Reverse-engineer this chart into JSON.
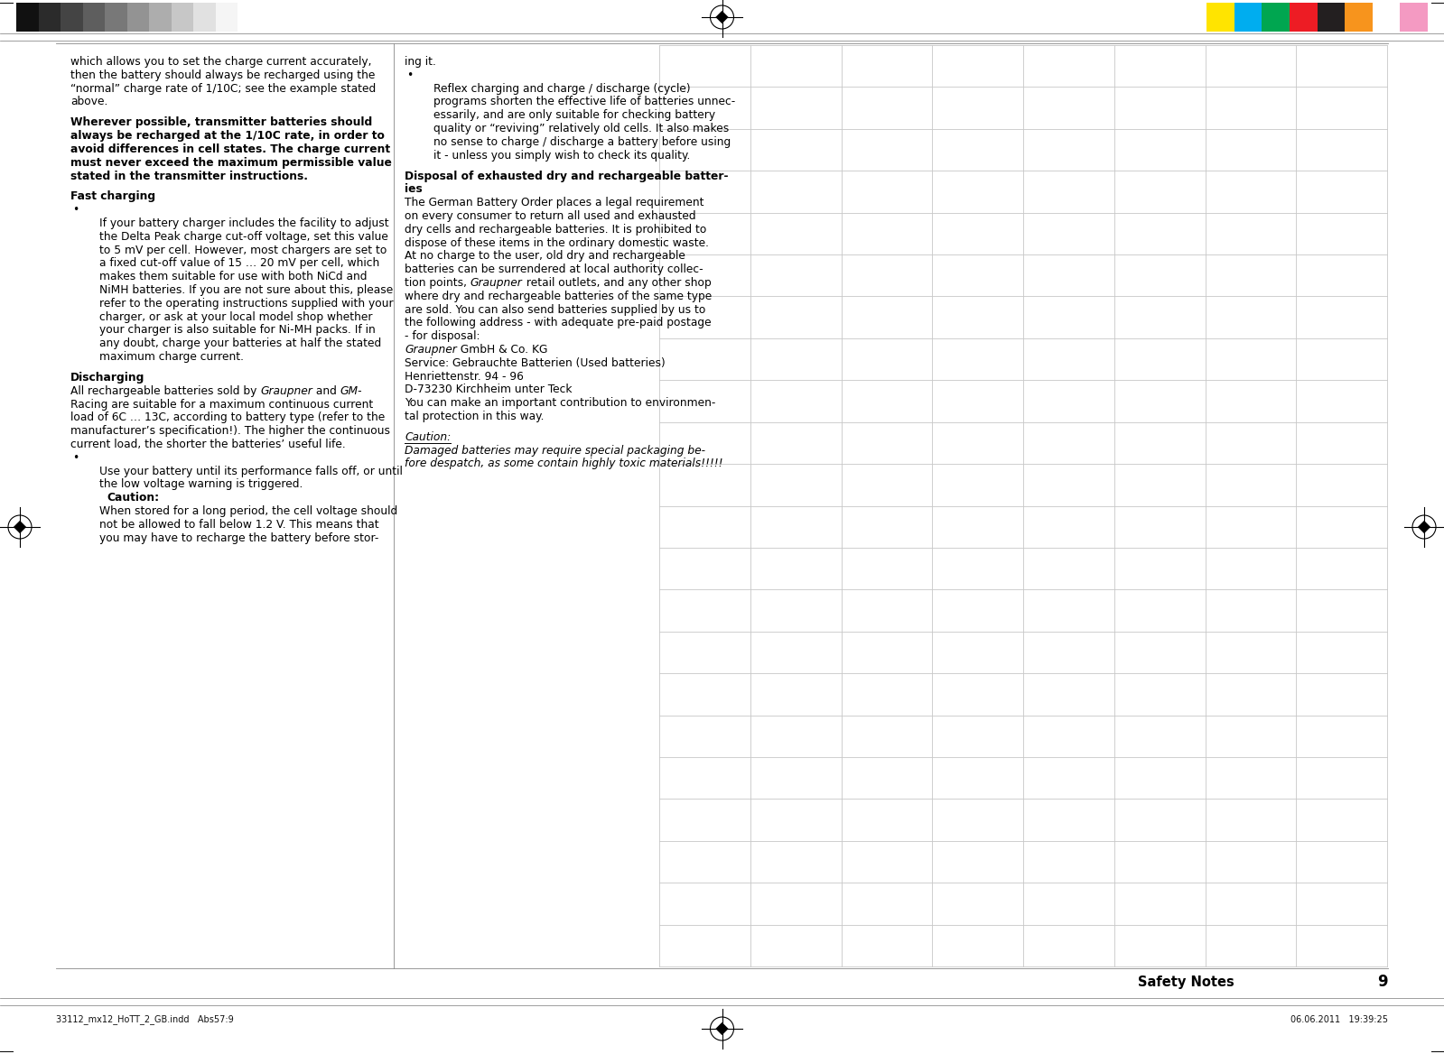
{
  "page_bg": "#ffffff",
  "header_bar_colors_gray": [
    "#111111",
    "#2b2b2b",
    "#444444",
    "#5e5e5e",
    "#787878",
    "#939393",
    "#adadad",
    "#c7c7c7",
    "#e1e1e1",
    "#f5f5f5"
  ],
  "header_bar_colors_color": [
    "#ffe400",
    "#00adef",
    "#00a650",
    "#ed1c24",
    "#231f20",
    "#f7941d",
    "#ffffff",
    "#f49ac2"
  ],
  "footer_text_left": "33112_mx12_HoTT_2_GB.indd   Abs57:9",
  "footer_text_right": "06.06.2011   19:39:25",
  "page_number": "9",
  "section_title": "Safety Notes",
  "grid_rows": 22,
  "grid_cols": 8,
  "line_color": "#c8c8c8",
  "text_color": "#000000",
  "left_col_lines": [
    {
      "text": "which allows you to set the charge current accurately,",
      "bold": false,
      "italic": false
    },
    {
      "text": "then the battery should always be recharged using the",
      "bold": false,
      "italic": false
    },
    {
      "text": "“normal” charge rate of 1/10C; see the example stated",
      "bold": false,
      "italic": false
    },
    {
      "text": "above.",
      "bold": false,
      "italic": false
    },
    {
      "text": "Wherever possible, transmitter batteries should",
      "bold": true,
      "italic": false,
      "spacer_before": true
    },
    {
      "text": "always be recharged at the 1/10C rate, in order to",
      "bold": true,
      "italic": false
    },
    {
      "text": "avoid differences in cell states. The charge current",
      "bold": true,
      "italic": false
    },
    {
      "text": "must never exceed the maximum permissible value",
      "bold": true,
      "italic": false
    },
    {
      "text": "stated in the transmitter instructions.",
      "bold": true,
      "italic": false
    },
    {
      "text": "Fast charging",
      "bold": true,
      "italic": false,
      "spacer_before": true
    },
    {
      "text": "•",
      "bold": false,
      "italic": false,
      "bullet": true
    },
    {
      "text": "If your battery charger includes the facility to adjust",
      "bold": false,
      "italic": false,
      "bulleted_line": true
    },
    {
      "text": "the Delta Peak charge cut-off voltage, set this value",
      "bold": false,
      "italic": false,
      "bulleted_line": true
    },
    {
      "text": "to 5 mV per cell. However, most chargers are set to",
      "bold": false,
      "italic": false,
      "bulleted_line": true
    },
    {
      "text": "a fixed cut-off value of 15 … 20 mV per cell, which",
      "bold": false,
      "italic": false,
      "bulleted_line": true
    },
    {
      "text": "makes them suitable for use with both NiCd and",
      "bold": false,
      "italic": false,
      "bulleted_line": true
    },
    {
      "text": "NiMH batteries. If you are not sure about this, please",
      "bold": false,
      "italic": false,
      "bulleted_line": true
    },
    {
      "text": "refer to the operating instructions supplied with your",
      "bold": false,
      "italic": false,
      "bulleted_line": true
    },
    {
      "text": "charger, or ask at your local model shop whether",
      "bold": false,
      "italic": false,
      "bulleted_line": true
    },
    {
      "text": "your charger is also suitable for Ni-MH packs. If in",
      "bold": false,
      "italic": false,
      "bulleted_line": true
    },
    {
      "text": "any doubt, charge your batteries at half the stated",
      "bold": false,
      "italic": false,
      "bulleted_line": true
    },
    {
      "text": "maximum charge current.",
      "bold": false,
      "italic": false,
      "bulleted_line": true
    },
    {
      "text": "Discharging",
      "bold": true,
      "italic": false,
      "spacer_before": true
    },
    {
      "text": "All rechargeable batteries sold by ",
      "bold": false,
      "italic": false,
      "mixed_italic_after": "Graupner",
      "mixed_rest": " and ",
      "mixed_italic2": "GM-",
      "inline_segments": [
        [
          "All rechargeable batteries sold by ",
          false,
          false
        ],
        [
          "Graupner",
          false,
          true
        ],
        [
          " and ",
          false,
          false
        ],
        [
          "GM-",
          false,
          true
        ]
      ]
    },
    {
      "text": "Racing are suitable for a maximum continuous current",
      "bold": false,
      "italic": false
    },
    {
      "text": "load of 6C … 13C, according to battery type (refer to the",
      "bold": false,
      "italic": false
    },
    {
      "text": "manufacturer’s specification!). The higher the continuous",
      "bold": false,
      "italic": false
    },
    {
      "text": "current load, the shorter the batteries’ useful life.",
      "bold": false,
      "italic": false
    },
    {
      "text": "•",
      "bold": false,
      "italic": false,
      "bullet": true
    },
    {
      "text": "Use your battery until its performance falls off, or until",
      "bold": false,
      "italic": false,
      "bulleted_line": true
    },
    {
      "text": "the low voltage warning is triggered.",
      "bold": false,
      "italic": false,
      "bulleted_line": true
    },
    {
      "text": "Caution:",
      "bold": true,
      "italic": false,
      "bulleted_line": true,
      "extra_indent": true
    },
    {
      "text": "When stored for a long period, the cell voltage should",
      "bold": false,
      "italic": false,
      "bulleted_line": true
    },
    {
      "text": "not be allowed to fall below 1.2 V. This means that",
      "bold": false,
      "italic": false,
      "bulleted_line": true
    },
    {
      "text": "you may have to recharge the battery before stor-",
      "bold": false,
      "italic": false,
      "bulleted_line": true
    }
  ],
  "right_col_lines": [
    {
      "text": "ing it.",
      "bold": false,
      "italic": false
    },
    {
      "text": "•",
      "bold": false,
      "italic": false,
      "bullet": true
    },
    {
      "text": "Reflex charging and charge / discharge (cycle)",
      "bold": false,
      "italic": false,
      "bulleted_line": true
    },
    {
      "text": "programs shorten the effective life of batteries unnec-",
      "bold": false,
      "italic": false,
      "bulleted_line": true
    },
    {
      "text": "essarily, and are only suitable for checking battery",
      "bold": false,
      "italic": false,
      "bulleted_line": true
    },
    {
      "text": "quality or “reviving” relatively old cells. It also makes",
      "bold": false,
      "italic": false,
      "bulleted_line": true
    },
    {
      "text": "no sense to charge / discharge a battery before using",
      "bold": false,
      "italic": false,
      "bulleted_line": true
    },
    {
      "text": "it - unless you simply wish to check its quality.",
      "bold": false,
      "italic": false,
      "bulleted_line": true
    },
    {
      "text": "Disposal of exhausted dry and rechargeable batter-",
      "bold": true,
      "italic": false,
      "spacer_before": true
    },
    {
      "text": "ies",
      "bold": true,
      "italic": false
    },
    {
      "text": "The German Battery Order places a legal requirement",
      "bold": false,
      "italic": false
    },
    {
      "text": "on every consumer to return all used and exhausted",
      "bold": false,
      "italic": false
    },
    {
      "text": "dry cells and rechargeable batteries. It is prohibited to",
      "bold": false,
      "italic": false
    },
    {
      "text": "dispose of these items in the ordinary domestic waste.",
      "bold": false,
      "italic": false
    },
    {
      "text": "At no charge to the user, old dry and rechargeable",
      "bold": false,
      "italic": false
    },
    {
      "text": "batteries can be surrendered at local authority collec-",
      "bold": false,
      "italic": false
    },
    {
      "text": "tion points, ",
      "bold": false,
      "italic": false,
      "inline_segments": [
        [
          "tion points, ",
          false,
          false
        ],
        [
          "Graupner",
          false,
          true
        ],
        [
          " retail outlets, and any other shop",
          false,
          false
        ]
      ]
    },
    {
      "text": "where dry and rechargeable batteries of the same type",
      "bold": false,
      "italic": false
    },
    {
      "text": "are sold. You can also send batteries supplied by us to",
      "bold": false,
      "italic": false
    },
    {
      "text": "the following address - with adequate pre-paid postage",
      "bold": false,
      "italic": false
    },
    {
      "text": "- for disposal:",
      "bold": false,
      "italic": false
    },
    {
      "text": "GmbH & Co. KG",
      "bold": false,
      "italic": true,
      "inline_segments": [
        [
          "Graupner",
          false,
          true
        ],
        [
          " GmbH & Co. KG",
          false,
          false
        ]
      ]
    },
    {
      "text": "Service: Gebrauchte Batterien (Used batteries)",
      "bold": false,
      "italic": false
    },
    {
      "text": "Henriettenstr. 94 - 96",
      "bold": false,
      "italic": false
    },
    {
      "text": "D-73230 Kirchheim unter Teck",
      "bold": false,
      "italic": false
    },
    {
      "text": "You can make an important contribution to environmen-",
      "bold": false,
      "italic": false
    },
    {
      "text": "tal protection in this way.",
      "bold": false,
      "italic": false
    },
    {
      "text": "Caution:",
      "bold": false,
      "italic": true,
      "underline": true,
      "spacer_before": true
    },
    {
      "text": "Damaged batteries may require special packaging be-",
      "bold": false,
      "italic": true
    },
    {
      "text": "fore despatch, as some contain highly toxic materials!!!!!",
      "bold": false,
      "italic": true
    }
  ]
}
